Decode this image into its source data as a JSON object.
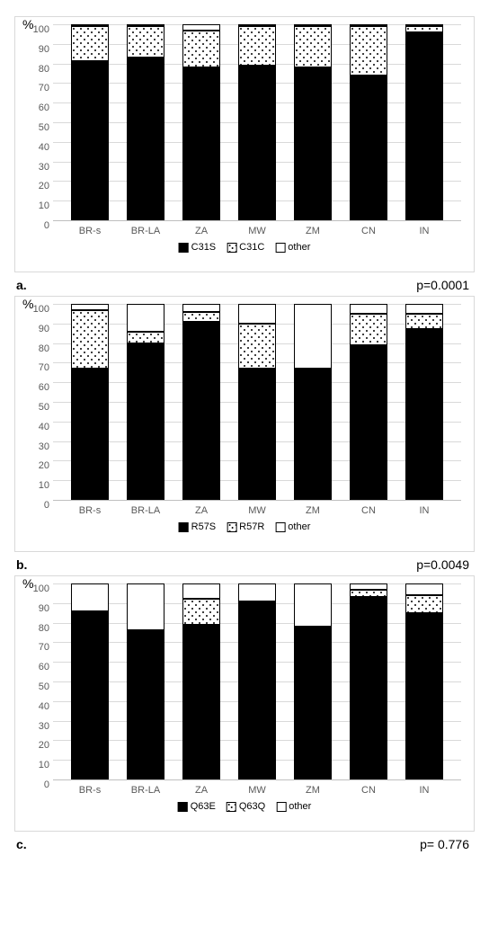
{
  "axis_label": "%",
  "ylim": [
    0,
    100
  ],
  "ytick_step": 10,
  "categories": [
    "BR-s",
    "BR-LA",
    "ZA",
    "MW",
    "ZM",
    "CN",
    "IN"
  ],
  "colors": {
    "solid": "#000000",
    "hatch_bg": "#ffffff",
    "other": "#ffffff",
    "border": "#000000",
    "panel_border": "#d9d9d9",
    "grid": "#d9d9d9",
    "tick_text": "#595959"
  },
  "panels": [
    {
      "id": "a",
      "legend": {
        "solid": "C31S",
        "hatch": "C31C",
        "other": "other"
      },
      "caption_left": "a.",
      "caption_right": "p=0.0001",
      "bars": [
        {
          "solid": 81,
          "hatch": 18,
          "other": 1
        },
        {
          "solid": 83,
          "hatch": 16,
          "other": 1
        },
        {
          "solid": 78,
          "hatch": 19,
          "other": 3
        },
        {
          "solid": 79,
          "hatch": 20,
          "other": 1
        },
        {
          "solid": 78,
          "hatch": 21,
          "other": 1
        },
        {
          "solid": 74,
          "hatch": 25,
          "other": 1
        },
        {
          "solid": 96,
          "hatch": 3,
          "other": 1
        }
      ]
    },
    {
      "id": "b",
      "legend": {
        "solid": "R57S",
        "hatch": "R57R",
        "other": "other"
      },
      "caption_left": "b.",
      "caption_right": "p=0.0049",
      "bars": [
        {
          "solid": 67,
          "hatch": 30,
          "other": 3
        },
        {
          "solid": 80,
          "hatch": 6,
          "other": 14
        },
        {
          "solid": 91,
          "hatch": 5,
          "other": 4
        },
        {
          "solid": 67,
          "hatch": 23,
          "other": 10
        },
        {
          "solid": 67,
          "hatch": 0,
          "other": 33
        },
        {
          "solid": 79,
          "hatch": 16,
          "other": 5
        },
        {
          "solid": 87,
          "hatch": 8,
          "other": 5
        }
      ]
    },
    {
      "id": "c",
      "legend": {
        "solid": "Q63E",
        "hatch": "Q63Q",
        "other": "other"
      },
      "caption_left": "c.",
      "caption_right": "p= 0.776",
      "bars": [
        {
          "solid": 86,
          "hatch": 0,
          "other": 14
        },
        {
          "solid": 76,
          "hatch": 0,
          "other": 24
        },
        {
          "solid": 79,
          "hatch": 13,
          "other": 8
        },
        {
          "solid": 91,
          "hatch": 0,
          "other": 9
        },
        {
          "solid": 78,
          "hatch": 0,
          "other": 22
        },
        {
          "solid": 93,
          "hatch": 4,
          "other": 3
        },
        {
          "solid": 85,
          "hatch": 9,
          "other": 6
        }
      ]
    }
  ]
}
